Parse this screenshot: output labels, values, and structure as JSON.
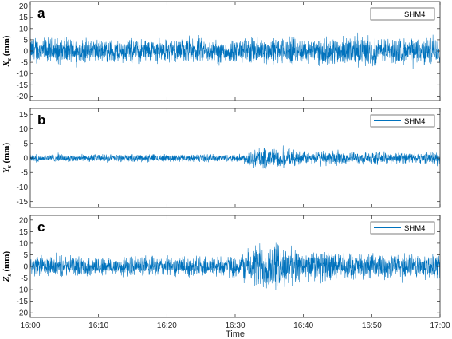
{
  "colors": {
    "series": "#0072BD",
    "axis": "#262626",
    "background": "#ffffff"
  },
  "chart_data": [
    {
      "type": "line",
      "panel_label": "a",
      "ylabel_main": "X",
      "ylabel_sub": "s",
      "ylabel_unit": " (mm)",
      "ylim": [
        -22,
        22
      ],
      "yticks": [
        -20,
        -15,
        -10,
        -5,
        0,
        5,
        10,
        15,
        20
      ],
      "xlim_minutes": [
        0,
        60
      ],
      "legend": {
        "text": "SHM4",
        "placement": "top-right"
      },
      "series": [
        {
          "name": "SHM4",
          "envelope": [
            {
              "t": 0,
              "amp": 7
            },
            {
              "t": 5,
              "amp": 7
            },
            {
              "t": 10,
              "amp": 6
            },
            {
              "t": 15,
              "amp": 6.5
            },
            {
              "t": 20,
              "amp": 6
            },
            {
              "t": 25,
              "amp": 6.5
            },
            {
              "t": 30,
              "amp": 6
            },
            {
              "t": 33,
              "amp": 7.5
            },
            {
              "t": 36,
              "amp": 7
            },
            {
              "t": 40,
              "amp": 6.5
            },
            {
              "t": 45,
              "amp": 7.5
            },
            {
              "t": 50,
              "amp": 7
            },
            {
              "t": 55,
              "amp": 6.5
            },
            {
              "t": 60,
              "amp": 7.5
            }
          ]
        }
      ]
    },
    {
      "type": "line",
      "panel_label": "b",
      "ylabel_main": "Y",
      "ylabel_sub": "s",
      "ylabel_unit": " (mm)",
      "ylim": [
        -17,
        17
      ],
      "yticks": [
        -15,
        -10,
        -5,
        0,
        5,
        10,
        15
      ],
      "xlim_minutes": [
        0,
        60
      ],
      "legend": {
        "text": "SHM4",
        "placement": "top-right"
      },
      "series": [
        {
          "name": "SHM4",
          "envelope": [
            {
              "t": 0,
              "amp": 1.5
            },
            {
              "t": 10,
              "amp": 1.5
            },
            {
              "t": 20,
              "amp": 1.5
            },
            {
              "t": 30,
              "amp": 1.5
            },
            {
              "t": 31.5,
              "amp": 1.8
            },
            {
              "t": 32.3,
              "amp": 4.5
            },
            {
              "t": 35,
              "amp": 4
            },
            {
              "t": 38,
              "amp": 3.5
            },
            {
              "t": 41,
              "amp": 2.2
            },
            {
              "t": 44,
              "amp": 3.2
            },
            {
              "t": 47,
              "amp": 2.3
            },
            {
              "t": 52,
              "amp": 2.5
            },
            {
              "t": 56,
              "amp": 2.3
            },
            {
              "t": 60,
              "amp": 2.5
            }
          ]
        }
      ]
    },
    {
      "type": "line",
      "panel_label": "c",
      "ylabel_main": "Z",
      "ylabel_sub": "s",
      "ylabel_unit": " (mm)",
      "ylim": [
        -22,
        22
      ],
      "yticks": [
        -20,
        -15,
        -10,
        -5,
        0,
        5,
        10,
        15,
        20
      ],
      "xlim_minutes": [
        0,
        60
      ],
      "legend": {
        "text": "SHM4",
        "placement": "top-right"
      },
      "series": [
        {
          "name": "SHM4",
          "envelope": [
            {
              "t": 0,
              "amp": 5
            },
            {
              "t": 10,
              "amp": 5
            },
            {
              "t": 20,
              "amp": 5
            },
            {
              "t": 30,
              "amp": 5.5
            },
            {
              "t": 32,
              "amp": 9
            },
            {
              "t": 34,
              "amp": 13
            },
            {
              "t": 36,
              "amp": 12
            },
            {
              "t": 38,
              "amp": 10
            },
            {
              "t": 40,
              "amp": 7
            },
            {
              "t": 42,
              "amp": 8
            },
            {
              "t": 45,
              "amp": 7
            },
            {
              "t": 50,
              "amp": 6
            },
            {
              "t": 55,
              "amp": 6
            },
            {
              "t": 60,
              "amp": 6
            }
          ]
        }
      ]
    }
  ],
  "x_axis": {
    "ticks": [
      {
        "minutes": 0,
        "label": "16:00"
      },
      {
        "minutes": 10,
        "label": "16:10"
      },
      {
        "minutes": 20,
        "label": "16:20"
      },
      {
        "minutes": 30,
        "label": "16:30"
      },
      {
        "minutes": 40,
        "label": "16:40"
      },
      {
        "minutes": 50,
        "label": "16:50"
      },
      {
        "minutes": 60,
        "label": "17:00"
      }
    ],
    "label": "Time"
  }
}
